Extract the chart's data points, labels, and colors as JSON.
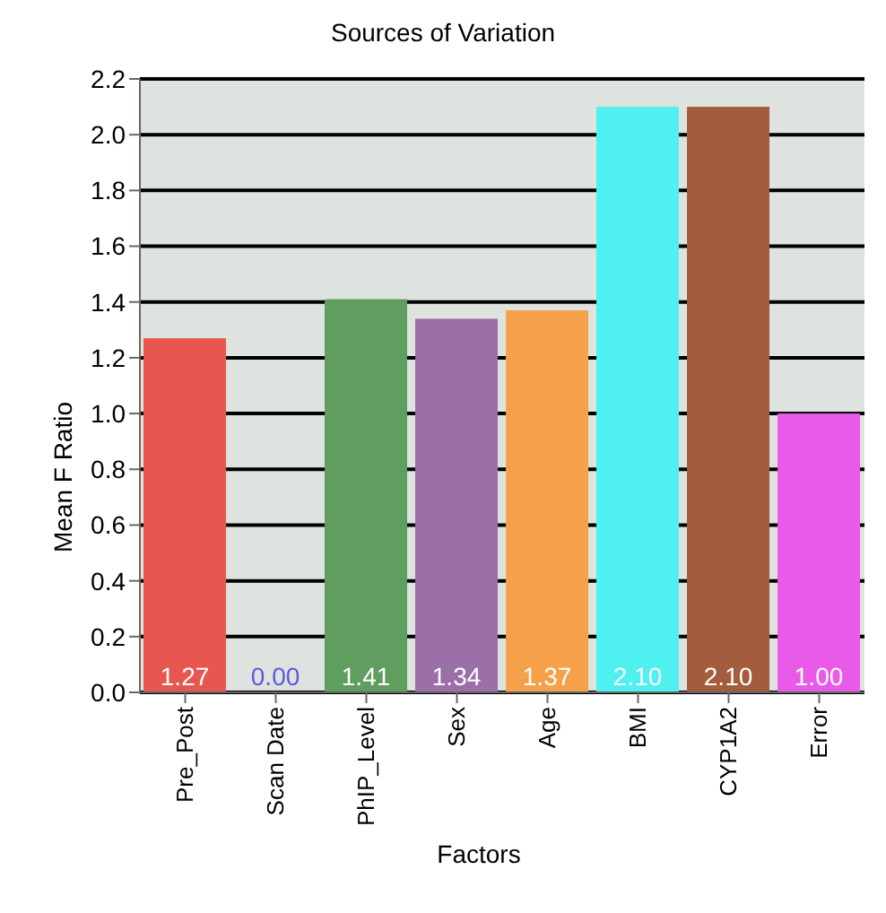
{
  "chart_data": {
    "type": "bar",
    "title": "Sources of Variation",
    "xlabel": "Factors",
    "ylabel": "Mean F Ratio",
    "categories": [
      "Pre_Post",
      "Scan Date",
      "PhIP_Level",
      "Sex",
      "Age",
      "BMI",
      "CYP1A2",
      "Error"
    ],
    "values": [
      1.27,
      0,
      1.41,
      1.34,
      1.37,
      2.1,
      2.1,
      1.0
    ],
    "value_labels": [
      "1.27",
      "0.00",
      "1.41",
      "1.34",
      "1.37",
      "2.10",
      "2.10",
      "1.00"
    ],
    "colors": [
      "#e8574f",
      "#5a5ae0",
      "#5f9e5f",
      "#9b6fa8",
      "#f7a04a",
      "#4ef0f0",
      "#a45c3e",
      "#ea5ae8"
    ],
    "ylim": [
      0,
      2.2
    ],
    "yticks": [
      {
        "value": 0,
        "label": "0.0"
      },
      {
        "value": 0.2,
        "label": "0.2"
      },
      {
        "value": 0.4,
        "label": "0.4"
      },
      {
        "value": 0.6,
        "label": "0.6"
      },
      {
        "value": 0.8,
        "label": "0.8"
      },
      {
        "value": 1,
        "label": "1.0"
      },
      {
        "value": 1.2,
        "label": "1.2"
      },
      {
        "value": 1.4,
        "label": "1.4"
      },
      {
        "value": 1.6,
        "label": "1.6"
      },
      {
        "value": 1.8,
        "label": "1.8"
      },
      {
        "value": 2,
        "label": "2.0"
      },
      {
        "value": 2.2,
        "label": "2.2"
      }
    ],
    "grid": "y",
    "legend": false
  }
}
